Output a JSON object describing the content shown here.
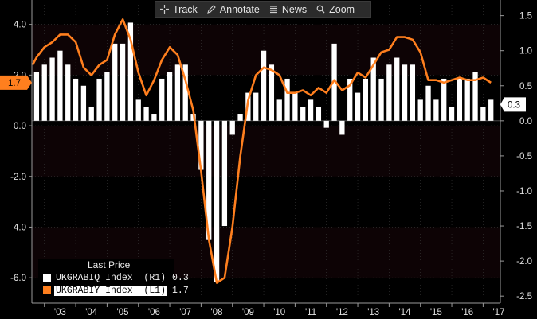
{
  "toolbar": {
    "track_label": "Track",
    "annotate_label": "Annotate",
    "news_label": "News",
    "zoom_label": "Zoom"
  },
  "legend": {
    "title": "Last Price",
    "series": [
      {
        "name": "UKGRABIQ Index  (R1)",
        "value": "0.3",
        "color": "#ffffff"
      },
      {
        "name": "UKGRABIY Index  (L1)",
        "value": "1.7",
        "color": "#ff7f1e"
      }
    ]
  },
  "tags": {
    "left_value": "1.7",
    "right_value": "0.3"
  },
  "colors": {
    "line": "#ff7f1e",
    "bars": "#ffffff",
    "background": "#000000",
    "band": "#0d0305",
    "grid": "#3a3a3a"
  },
  "chart_data": {
    "type": "bar+line",
    "x_tick_labels": [
      "'03",
      "'04",
      "'05",
      "'06",
      "'07",
      "'08",
      "'09",
      "'10",
      "'11",
      "'12",
      "'13",
      "'14",
      "'15",
      "'16",
      "'17"
    ],
    "left_axis": {
      "ticks": [
        "4.0",
        "2.0",
        "0.0",
        "-2.0",
        "-4.0",
        "-6.0"
      ],
      "ylim": [
        -7.0,
        4.9
      ]
    },
    "right_axis": {
      "ticks": [
        "1.5",
        "1.0",
        "0.5",
        "0.0",
        "-0.5",
        "-1.0",
        "-1.5",
        "-2.0",
        "-2.5"
      ],
      "ylim": [
        -2.6,
        1.7
      ]
    },
    "x_range": [
      2002.6,
      2017.55
    ],
    "series": [
      {
        "name": "UKGRABIQ Index",
        "axis": "right",
        "type": "bar",
        "x": [
          2002.75,
          2003.0,
          2003.25,
          2003.5,
          2003.75,
          2004.0,
          2004.25,
          2004.5,
          2004.75,
          2005.0,
          2005.25,
          2005.5,
          2005.75,
          2006.0,
          2006.25,
          2006.5,
          2006.75,
          2007.0,
          2007.25,
          2007.5,
          2007.75,
          2008.0,
          2008.25,
          2008.5,
          2008.75,
          2009.0,
          2009.25,
          2009.5,
          2009.75,
          2010.0,
          2010.25,
          2010.5,
          2010.75,
          2011.0,
          2011.25,
          2011.5,
          2011.75,
          2012.0,
          2012.25,
          2012.5,
          2012.75,
          2013.0,
          2013.25,
          2013.5,
          2013.75,
          2014.0,
          2014.25,
          2014.5,
          2014.75,
          2015.0,
          2015.25,
          2015.5,
          2015.75,
          2016.0,
          2016.25,
          2016.5,
          2016.75,
          2017.0,
          2017.25
        ],
        "values": [
          0.7,
          0.8,
          0.9,
          1.0,
          0.8,
          0.6,
          0.5,
          0.2,
          0.6,
          0.7,
          1.1,
          1.1,
          1.4,
          0.3,
          0.2,
          0.1,
          0.6,
          0.7,
          0.8,
          0.8,
          0.1,
          -0.7,
          -1.7,
          -2.3,
          -1.5,
          -0.2,
          0.1,
          0.4,
          0.4,
          1.0,
          0.8,
          0.3,
          0.6,
          0.4,
          0.2,
          0.3,
          0.2,
          -0.1,
          1.1,
          -0.2,
          0.6,
          0.4,
          0.6,
          0.9,
          0.6,
          0.8,
          0.9,
          0.8,
          0.8,
          0.3,
          0.5,
          0.3,
          0.6,
          0.2,
          0.6,
          0.6,
          0.7,
          0.2,
          0.3
        ]
      },
      {
        "name": "UKGRABIY Index",
        "axis": "left",
        "type": "line",
        "x": [
          2002.62,
          2002.75,
          2003.0,
          2003.25,
          2003.5,
          2003.75,
          2004.0,
          2004.25,
          2004.5,
          2004.75,
          2005.0,
          2005.25,
          2005.5,
          2005.75,
          2006.0,
          2006.25,
          2006.5,
          2006.75,
          2007.0,
          2007.25,
          2007.5,
          2007.75,
          2008.0,
          2008.25,
          2008.5,
          2008.75,
          2009.0,
          2009.25,
          2009.5,
          2009.75,
          2010.0,
          2010.25,
          2010.5,
          2010.75,
          2011.0,
          2011.25,
          2011.5,
          2011.75,
          2012.0,
          2012.25,
          2012.5,
          2012.75,
          2013.0,
          2013.25,
          2013.5,
          2013.75,
          2014.0,
          2014.25,
          2014.5,
          2014.75,
          2015.0,
          2015.25,
          2015.5,
          2015.75,
          2016.0,
          2016.25,
          2016.5,
          2016.75,
          2017.0,
          2017.25
        ],
        "values": [
          2.4,
          2.7,
          3.1,
          3.3,
          3.6,
          3.6,
          3.3,
          2.3,
          2.0,
          2.4,
          2.6,
          3.6,
          4.2,
          3.4,
          2.1,
          1.2,
          1.8,
          2.6,
          3.1,
          2.8,
          1.8,
          0.6,
          -1.8,
          -4.5,
          -6.2,
          -6.0,
          -4.0,
          -1.2,
          1.0,
          2.0,
          2.3,
          2.2,
          2.0,
          1.3,
          1.3,
          1.4,
          1.2,
          1.5,
          1.3,
          1.8,
          1.4,
          1.6,
          2.1,
          1.9,
          2.4,
          2.9,
          3.0,
          3.5,
          3.5,
          3.4,
          2.9,
          1.8,
          1.8,
          1.7,
          1.8,
          1.9,
          1.8,
          1.8,
          1.9,
          1.7
        ]
      }
    ],
    "grid": true,
    "legend_position": "bottom-left"
  }
}
